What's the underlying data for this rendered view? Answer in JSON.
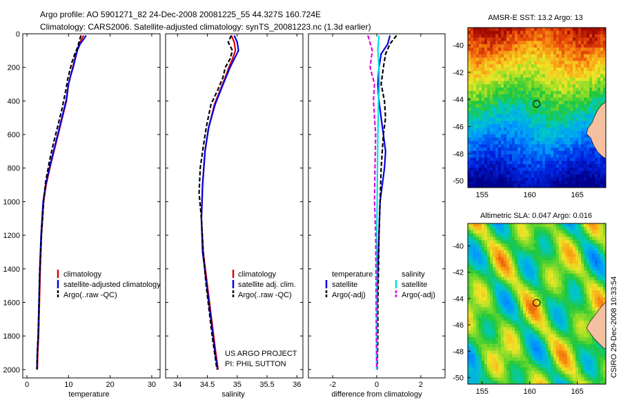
{
  "figure": {
    "title_line1": "Argo profile: AO 5901271_82 24-Dec-2008 20081225_55 44.327S 160.724E",
    "title_line2": "Climatology: CARS2006. Satellite-adjusted climatology: synTS_20081223.nc (1.3d earlier)",
    "side_caption": "CSIRO 29-Dec-2008 10:33:54",
    "project_line1": "US ARGO PROJECT",
    "project_line2": "PI: PHIL SUTTON"
  },
  "colors": {
    "climatology": "#e00000",
    "satellite": "#0000e0",
    "argo": "#000000",
    "sal_satellite": "#00e0e0",
    "sal_argo": "#e000e0"
  },
  "chart_data": [
    {
      "type": "line",
      "id": "temperature",
      "xlabel": "temperature",
      "ylabel": "",
      "xlim": [
        -1,
        32
      ],
      "ylim": [
        2050,
        0
      ],
      "xticks": [
        "0",
        "10",
        "20",
        "30"
      ],
      "yticks": [
        "0",
        "200",
        "400",
        "600",
        "800",
        "1000",
        "1200",
        "1400",
        "1600",
        "1800",
        "2000"
      ],
      "legend": [
        "climatology",
        "satellite-adjusted climatology",
        "Argo(..raw -QC)"
      ],
      "series": [
        {
          "name": "climatology",
          "style": "solid",
          "x": [
            13.6,
            13.2,
            12.6,
            12.0,
            11.5,
            11.0,
            10.5,
            10.0,
            9.5,
            8.5,
            7.5,
            6.5,
            5.5,
            4.6,
            4.0,
            3.5,
            3.2,
            3.0,
            2.8,
            2.6,
            2.5
          ],
          "y": [
            10,
            30,
            60,
            100,
            150,
            200,
            250,
            300,
            400,
            500,
            600,
            700,
            800,
            900,
            1000,
            1200,
            1400,
            1600,
            1800,
            1900,
            2000
          ]
        },
        {
          "name": "satellite",
          "style": "solid",
          "x": [
            14.2,
            13.7,
            12.8,
            12.1,
            11.6,
            11.1,
            10.5,
            10.0,
            9.4,
            8.4,
            7.4,
            6.4,
            5.4,
            4.5,
            3.9,
            3.4,
            3.1,
            2.9,
            2.7,
            2.5,
            2.4
          ],
          "y": [
            10,
            30,
            60,
            100,
            150,
            200,
            250,
            300,
            400,
            500,
            600,
            700,
            800,
            900,
            1000,
            1200,
            1400,
            1600,
            1800,
            1900,
            2000
          ]
        },
        {
          "name": "Argo",
          "style": "dashed",
          "x": [
            13.0,
            12.6,
            12.2,
            11.5,
            10.8,
            10.3,
            9.8,
            9.4,
            8.4,
            7.4,
            6.4,
            5.4,
            4.5,
            4.0,
            3.5,
            3.1,
            2.9,
            2.7,
            2.5,
            2.4
          ],
          "y": [
            10,
            40,
            80,
            120,
            170,
            220,
            270,
            330,
            450,
            550,
            650,
            760,
            880,
            1000,
            1200,
            1400,
            1600,
            1800,
            1900,
            2000
          ]
        }
      ]
    },
    {
      "type": "line",
      "id": "salinity",
      "xlabel": "salinity",
      "ylabel": "",
      "xlim": [
        33.8,
        36.1
      ],
      "ylim": [
        2050,
        0
      ],
      "xticks": [
        "34",
        "34.5",
        "35",
        "35.5",
        "36"
      ],
      "legend": [
        "climatology",
        "satellite adj. clim.",
        "Argo(..raw -QC)"
      ],
      "series": [
        {
          "name": "climatology",
          "style": "solid",
          "x": [
            34.9,
            34.95,
            34.97,
            34.92,
            34.86,
            34.8,
            34.72,
            34.62,
            34.52,
            34.46,
            34.42,
            34.4,
            34.43,
            34.5,
            34.57,
            34.64,
            34.68
          ],
          "y": [
            10,
            50,
            100,
            150,
            200,
            260,
            330,
            420,
            560,
            700,
            900,
            1100,
            1300,
            1500,
            1700,
            1900,
            2000
          ]
        },
        {
          "name": "satellite",
          "style": "solid",
          "x": [
            34.95,
            35.0,
            35.02,
            34.95,
            34.88,
            34.81,
            34.73,
            34.63,
            34.52,
            34.46,
            34.42,
            34.4,
            34.42,
            34.49,
            34.56,
            34.63,
            34.67
          ],
          "y": [
            10,
            50,
            100,
            150,
            200,
            260,
            330,
            420,
            560,
            700,
            900,
            1100,
            1300,
            1500,
            1700,
            1900,
            2000
          ]
        },
        {
          "name": "Argo",
          "style": "dashed",
          "x": [
            34.9,
            34.85,
            34.92,
            34.88,
            34.8,
            34.76,
            34.68,
            34.56,
            34.48,
            34.42,
            34.38,
            34.36,
            34.4,
            34.43,
            34.48,
            34.58,
            34.66
          ],
          "y": [
            10,
            50,
            100,
            150,
            200,
            260,
            330,
            420,
            560,
            700,
            800,
            950,
            1100,
            1300,
            1500,
            1800,
            2000
          ]
        }
      ]
    },
    {
      "type": "line",
      "id": "difference",
      "xlabel": "difference from climatology",
      "ylabel": "",
      "xlim": [
        -3.1,
        3.1
      ],
      "ylim": [
        2050,
        0
      ],
      "xticks": [
        "-2",
        "0",
        "2"
      ],
      "legend_left_title": "temperature",
      "legend_left": [
        "satellite",
        "Argo(-adj)"
      ],
      "legend_right_title": "salinity",
      "legend_right": [
        "satellite",
        "Argo(-adj)"
      ],
      "series": [
        {
          "name": "temperature satellite",
          "style": "solid",
          "x": [
            0.6,
            0.5,
            0.2,
            0.1,
            0.05,
            0.1,
            0.2,
            0.3,
            0.4,
            0.35,
            0.25,
            0.15,
            0.1,
            0.05,
            0.02,
            0.0,
            0.0,
            0.0
          ],
          "y": [
            10,
            60,
            120,
            200,
            300,
            400,
            500,
            600,
            700,
            800,
            900,
            1000,
            1200,
            1400,
            1600,
            1800,
            1900,
            2000
          ]
        },
        {
          "name": "temperature Argo(-adj)",
          "style": "dashed",
          "x": [
            0.9,
            0.6,
            0.4,
            0.3,
            0.2,
            0.35,
            0.4,
            0.3,
            0.2,
            0.15,
            0.1,
            0.08,
            0.05,
            0.05,
            0.02
          ],
          "y": [
            10,
            60,
            120,
            200,
            300,
            400,
            500,
            600,
            800,
            1000,
            1200,
            1400,
            1600,
            1800,
            2000
          ]
        },
        {
          "name": "salinity satellite",
          "style": "solid",
          "x": [
            0.1,
            0.05,
            0.1,
            0.12,
            0.08,
            0.05,
            0.03,
            0.02,
            0.0,
            0.0,
            0.0,
            0.0
          ],
          "y": [
            10,
            100,
            200,
            300,
            400,
            600,
            800,
            1000,
            1200,
            1500,
            1800,
            2000
          ]
        },
        {
          "name": "salinity Argo(-adj)",
          "style": "dashed",
          "x": [
            -0.4,
            -0.2,
            -0.3,
            -0.1,
            -0.15,
            -0.05,
            -0.08,
            -0.1,
            -0.05,
            -0.03,
            -0.02,
            0.0
          ],
          "y": [
            10,
            100,
            200,
            300,
            400,
            600,
            800,
            1000,
            1200,
            1500,
            1800,
            2000
          ]
        }
      ]
    },
    {
      "type": "heatmap",
      "id": "sst_map",
      "title": "AMSR-E SST: 13.2 Argo: 13",
      "xlim": [
        153.5,
        168
      ],
      "ylim": [
        -50.5,
        -38.7
      ],
      "xticks": [
        "155",
        "160",
        "165"
      ],
      "yticks": [
        "-40",
        "-42",
        "-44",
        "-46",
        "-48",
        "-50"
      ],
      "marker_lon": 160.724,
      "marker_lat": -44.327
    },
    {
      "type": "heatmap",
      "id": "sla_map",
      "title": "Altimetric SLA: 0.047 Argo: 0.016",
      "xlim": [
        153.5,
        168
      ],
      "ylim": [
        -50.5,
        -38.3
      ],
      "xticks": [
        "155",
        "160",
        "165"
      ],
      "yticks": [
        "-40",
        "-42",
        "-44",
        "-46",
        "-48",
        "-50"
      ],
      "marker_lon": 160.724,
      "marker_lat": -44.327
    }
  ]
}
